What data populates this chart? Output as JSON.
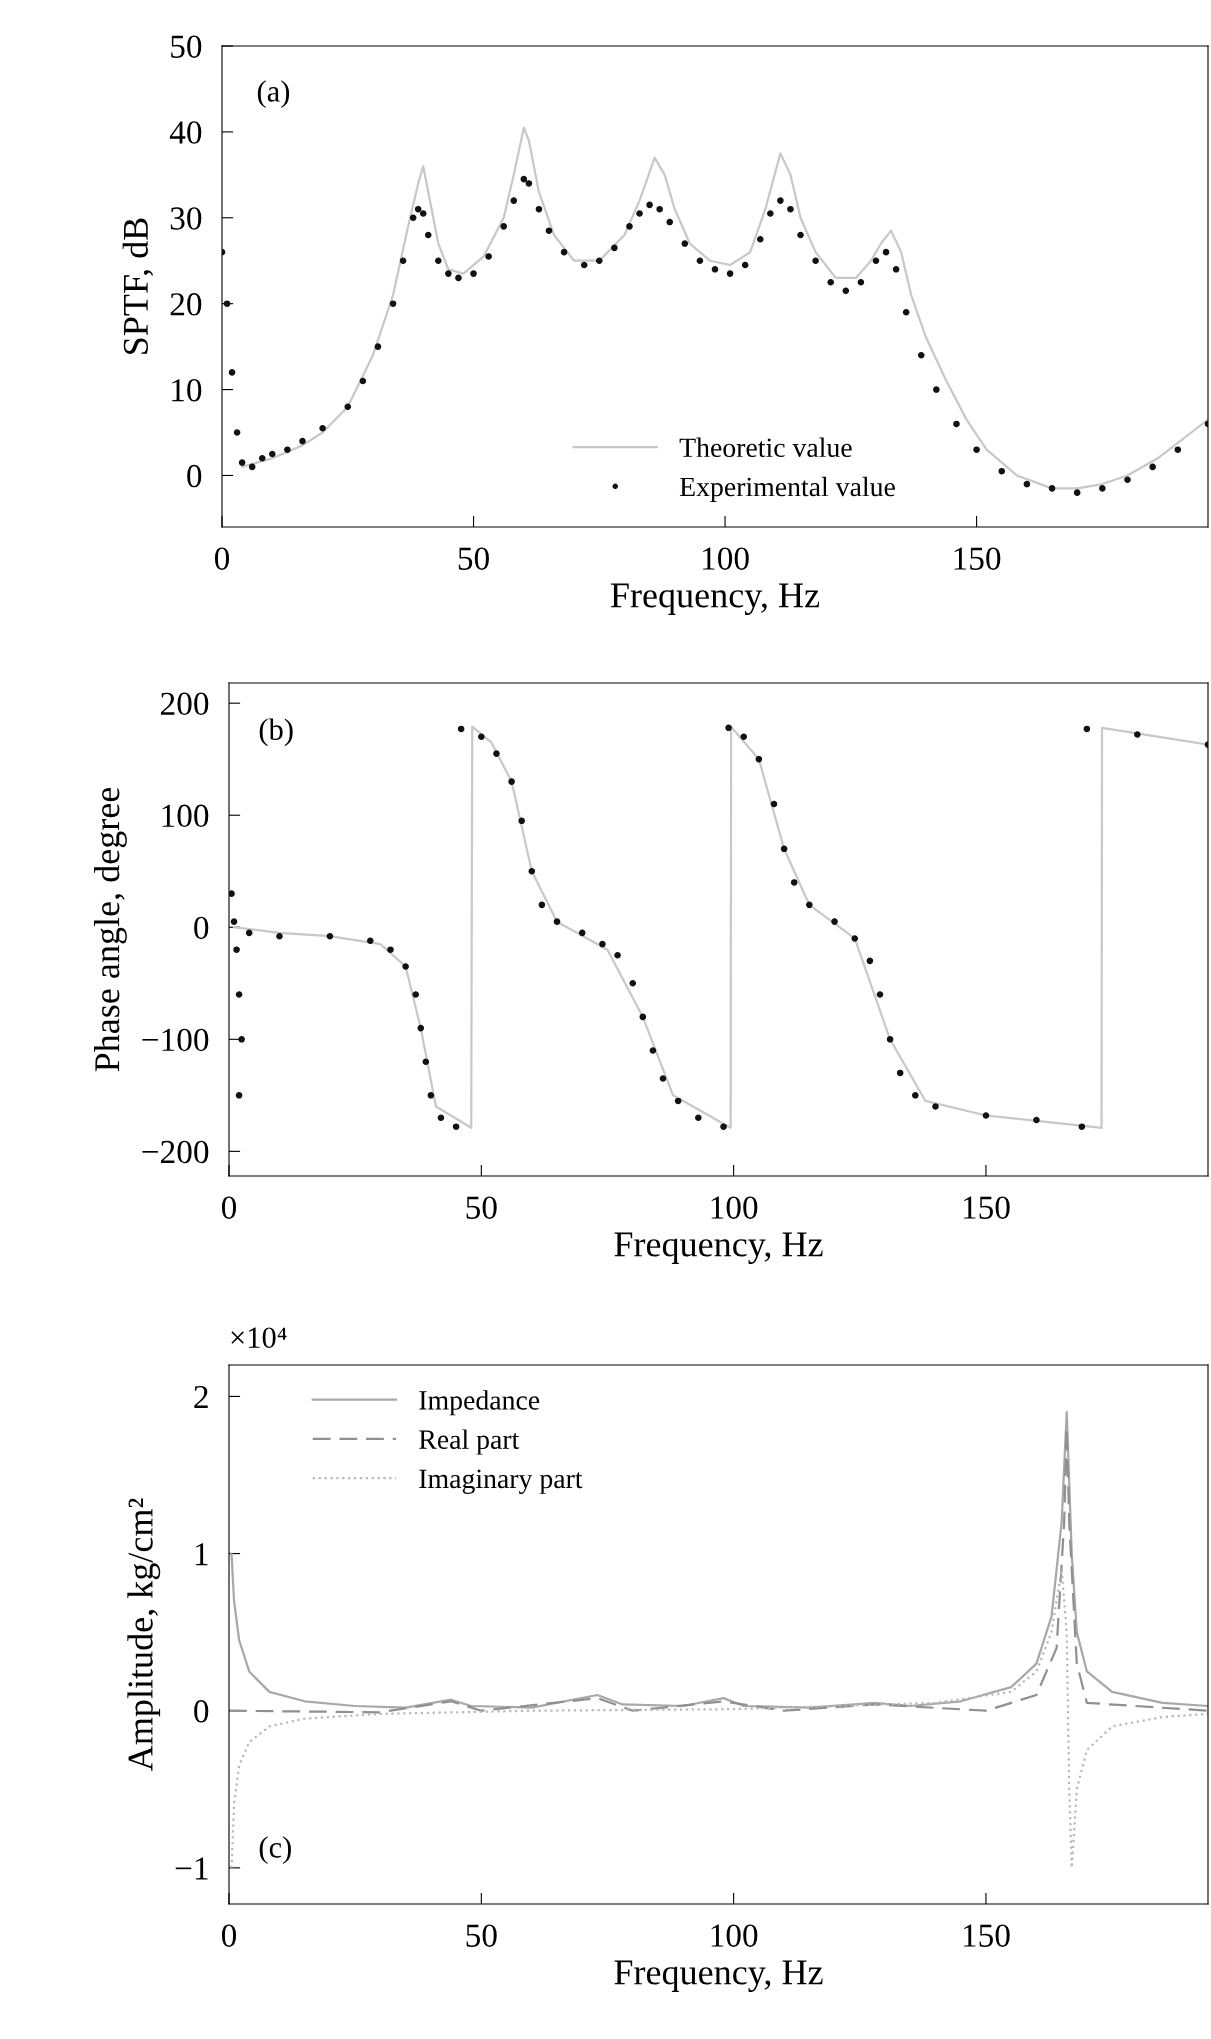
{
  "chart_data": [
    {
      "type": "line",
      "xlabel": "Frequency, Hz",
      "ylabel": "SPTF, dB",
      "annotations": [
        "(a)"
      ],
      "xlim": [
        0,
        196
      ],
      "xticks": [
        0,
        50,
        100,
        150
      ],
      "ylim": [
        -6,
        50
      ],
      "yticks": [
        0,
        10,
        20,
        30,
        40,
        50
      ],
      "legend": "bottom",
      "grid": false,
      "series": [
        {
          "name": "Theoretic value",
          "color": "#c8c8c8",
          "line_style": "solid",
          "x": [
            4,
            10,
            16,
            20,
            25,
            30,
            34,
            37,
            39,
            40,
            41,
            43,
            45,
            48,
            52,
            56,
            58,
            60,
            61,
            63,
            66,
            70,
            75,
            80,
            83,
            86,
            88,
            90,
            93,
            97,
            101,
            105,
            108,
            111,
            113,
            115,
            118,
            122,
            126,
            129,
            131,
            133,
            135,
            137,
            140,
            144,
            148,
            152,
            158,
            165,
            170,
            175,
            180,
            186,
            196
          ],
          "values": [
            1,
            2,
            3.5,
            5,
            8,
            14,
            21,
            29,
            34,
            36,
            33,
            27,
            24,
            23.5,
            25.5,
            30,
            35,
            40.5,
            39,
            33,
            28,
            25,
            25,
            28,
            32,
            37,
            35,
            31,
            27,
            25,
            24.5,
            26,
            31,
            37.5,
            35,
            30,
            26,
            23,
            23,
            25,
            27,
            28.5,
            26,
            21,
            16,
            11,
            6.5,
            3,
            0,
            -1.5,
            -1.5,
            -1,
            0,
            2,
            6.5
          ]
        },
        {
          "name": "Experimental value",
          "type": "scatter",
          "color": "#111111",
          "marker": "circle",
          "x": [
            0,
            1,
            2,
            3,
            4,
            6,
            8,
            10,
            13,
            16,
            20,
            25,
            28,
            31,
            34,
            36,
            38,
            39,
            40,
            41,
            43,
            45,
            47,
            50,
            53,
            56,
            58,
            60,
            61,
            63,
            65,
            68,
            72,
            75,
            78,
            81,
            83,
            85,
            87,
            89,
            92,
            95,
            98,
            101,
            104,
            107,
            109,
            111,
            113,
            115,
            118,
            121,
            124,
            127,
            130,
            132,
            134,
            136,
            139,
            142,
            146,
            150,
            155,
            160,
            165,
            170,
            175,
            180,
            185,
            190,
            196
          ],
          "values": [
            26,
            20,
            12,
            5,
            1.5,
            1,
            2,
            2.5,
            3,
            4,
            5.5,
            8,
            11,
            15,
            20,
            25,
            30,
            31,
            30.5,
            28,
            25,
            23.5,
            23,
            23.5,
            25.5,
            29,
            32,
            34.5,
            34,
            31,
            28.5,
            26,
            24.5,
            25,
            26.5,
            29,
            30.5,
            31.5,
            31,
            29.5,
            27,
            25,
            24,
            23.5,
            24.5,
            27.5,
            30.5,
            32,
            31,
            28,
            25,
            22.5,
            21.5,
            22.5,
            25,
            26,
            24,
            19,
            14,
            10,
            6,
            3,
            0.5,
            -1,
            -1.5,
            -2,
            -1.5,
            -0.5,
            1,
            3,
            6
          ]
        }
      ]
    },
    {
      "type": "line",
      "xlabel": "Frequency, Hz",
      "ylabel": "Phase angle, degree",
      "annotations": [
        "(b)"
      ],
      "xlim": [
        0,
        194
      ],
      "xticks": [
        0,
        50,
        100,
        150
      ],
      "ylim": [
        -222,
        218
      ],
      "yticks": [
        {
          "value": -200,
          "label": "−200"
        },
        {
          "value": -100,
          "label": "−100"
        },
        0,
        100,
        200
      ],
      "grid": false,
      "series": [
        {
          "color": "#c8c8c8",
          "line_style": "solid",
          "x": [
            1,
            10,
            20,
            30,
            35,
            38,
            41,
            48,
            48.2,
            52,
            56,
            60,
            65,
            75,
            82,
            88,
            99.4,
            99.5,
            105,
            110,
            115,
            124,
            131,
            138,
            150,
            172.9,
            173,
            194
          ],
          "values": [
            0,
            -5,
            -8,
            -15,
            -35,
            -90,
            -160,
            -179,
            179,
            165,
            130,
            50,
            5,
            -20,
            -80,
            -150,
            -179,
            179,
            150,
            70,
            20,
            -10,
            -100,
            -155,
            -168,
            -179,
            178,
            163
          ]
        },
        {
          "type": "scatter",
          "color": "#111111",
          "marker": "circle",
          "x": [
            0.5,
            1,
            1.5,
            2,
            2.5,
            2,
            4,
            10,
            20,
            28,
            32,
            35,
            37,
            38,
            39,
            40,
            42,
            45,
            46,
            50,
            53,
            56,
            58,
            60,
            62,
            65,
            70,
            74,
            77,
            80,
            82,
            84,
            86,
            89,
            93,
            98,
            99,
            102,
            105,
            108,
            110,
            112,
            115,
            120,
            124,
            127,
            129,
            131,
            133,
            136,
            140,
            150,
            160,
            169,
            170,
            180,
            194
          ],
          "values": [
            30,
            5,
            -20,
            -60,
            -100,
            -150,
            -5,
            -8,
            -8,
            -12,
            -20,
            -35,
            -60,
            -90,
            -120,
            -150,
            -170,
            -178,
            177,
            170,
            155,
            130,
            95,
            50,
            20,
            5,
            -5,
            -15,
            -25,
            -50,
            -80,
            -110,
            -135,
            -155,
            -170,
            -178,
            178,
            170,
            150,
            110,
            70,
            40,
            20,
            5,
            -10,
            -30,
            -60,
            -100,
            -130,
            -150,
            -160,
            -168,
            -172,
            -178,
            177,
            172,
            163
          ]
        }
      ]
    },
    {
      "type": "line",
      "xlabel": "Frequency, Hz",
      "ylabel": "Amplitude, kg/cm²",
      "annotations": [
        "×10⁴",
        "(c)"
      ],
      "xlim": [
        0,
        194
      ],
      "xticks": [
        0,
        50,
        100,
        150
      ],
      "ylim": [
        -1.23,
        2.2
      ],
      "yticks": [
        {
          "value": -1,
          "label": "−1"
        },
        0,
        1,
        2
      ],
      "legend": "top left",
      "grid": false,
      "series": [
        {
          "name": "Impedance",
          "color": "#a8a8a8",
          "line_style": "solid",
          "x": [
            0.5,
            1,
            2,
            4,
            8,
            15,
            25,
            35,
            44,
            48,
            60,
            73,
            78,
            90,
            98,
            102,
            115,
            128,
            135,
            145,
            155,
            160,
            163,
            165,
            166,
            167,
            168,
            170,
            175,
            185,
            194
          ],
          "values": [
            1.0,
            0.7,
            0.45,
            0.25,
            0.12,
            0.06,
            0.03,
            0.02,
            0.07,
            0.03,
            0.02,
            0.1,
            0.04,
            0.03,
            0.08,
            0.03,
            0.02,
            0.05,
            0.03,
            0.06,
            0.15,
            0.3,
            0.6,
            1.2,
            1.9,
            1.0,
            0.5,
            0.25,
            0.12,
            0.05,
            0.03
          ]
        },
        {
          "name": "Real part",
          "color": "#909090",
          "line_style": "dashed",
          "x": [
            0,
            30,
            44,
            50,
            73,
            80,
            98,
            110,
            128,
            150,
            160,
            164,
            165.5,
            166,
            166.5,
            168,
            170,
            194
          ],
          "values": [
            0,
            -0.01,
            0.06,
            0,
            0.08,
            0,
            0.06,
            0,
            0.04,
            0,
            0.1,
            0.4,
            1.2,
            1.8,
            1.2,
            0.3,
            0.05,
            0
          ]
        },
        {
          "name": "Imaginary part",
          "color": "#b8b8b8",
          "line_style": "dotted",
          "x": [
            0.5,
            1,
            2,
            4,
            8,
            15,
            30,
            60,
            100,
            140,
            155,
            160,
            163,
            165,
            166,
            166.5,
            167,
            168,
            170,
            175,
            185,
            194
          ],
          "values": [
            -1.0,
            -0.6,
            -0.35,
            -0.2,
            -0.1,
            -0.05,
            -0.02,
            0,
            0.01,
            0.05,
            0.12,
            0.25,
            0.5,
            0.9,
            0.5,
            -0.5,
            -1.0,
            -0.5,
            -0.25,
            -0.1,
            -0.04,
            -0.02
          ]
        }
      ]
    }
  ]
}
